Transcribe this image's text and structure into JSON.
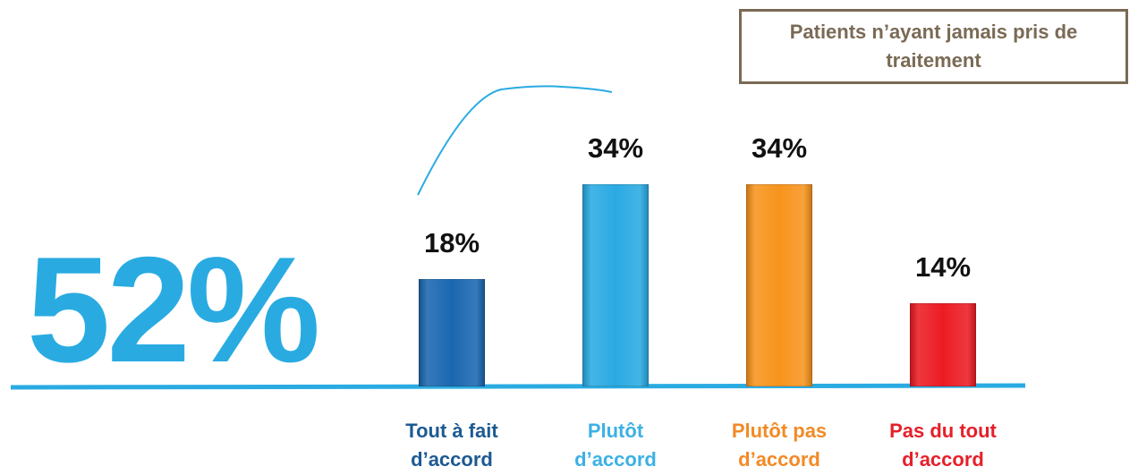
{
  "chart_data": {
    "type": "bar",
    "subtitle": "Patients n’ayant jamais pris de traitement",
    "annotation": "52%",
    "categories": [
      "Tout à fait d’accord",
      "Plutôt d’accord",
      "Plutôt pas d’accord",
      "Pas du tout d’accord"
    ],
    "values": [
      18,
      34,
      34,
      14
    ],
    "value_labels": [
      "18%",
      "34%",
      "34%",
      "14%"
    ],
    "colors": [
      "#1b67b0",
      "#2aaae2",
      "#f7941d",
      "#ec1c24"
    ],
    "label_colors": [
      "#1d5a92",
      "#3cb1e4",
      "#f28a26",
      "#e5202a"
    ]
  }
}
